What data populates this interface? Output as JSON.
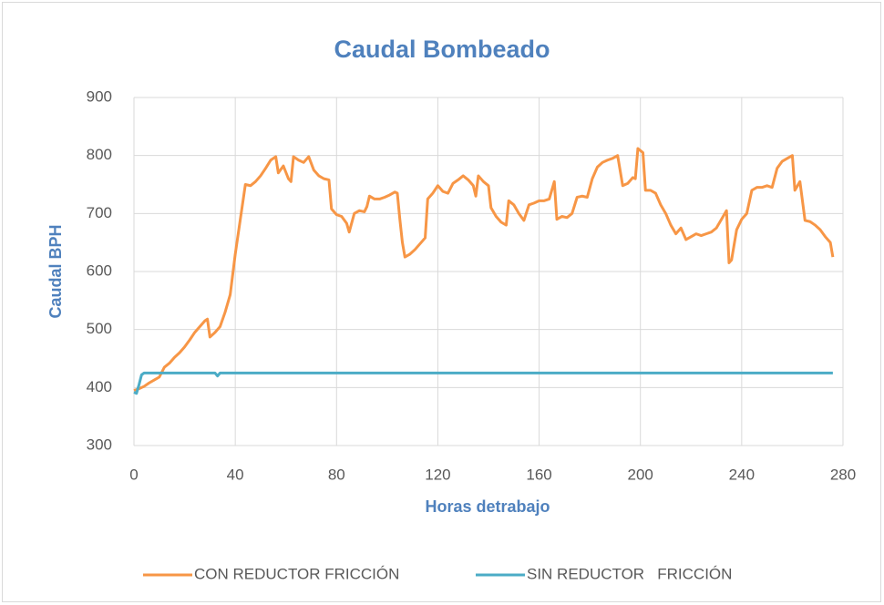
{
  "chart_data": {
    "type": "line",
    "title": "Caudal Bombeado",
    "x_label": "Horas detrabajo",
    "y_label": "Caudal BPH",
    "xlim": [
      0,
      280
    ],
    "xticks": [
      0,
      40,
      80,
      120,
      160,
      200,
      240,
      280
    ],
    "ylim": [
      300,
      900
    ],
    "yticks": [
      300,
      400,
      500,
      600,
      700,
      800,
      900
    ],
    "grid": true,
    "legend": "bottom",
    "series": [
      {
        "name": "CON REDUCTOR FRICCIÓN",
        "color": "#f79646",
        "x": [
          0,
          2,
          4,
          6,
          8,
          10,
          12,
          14,
          16,
          18,
          20,
          22,
          24,
          26,
          28,
          29,
          30,
          32,
          34,
          36,
          38,
          40,
          42,
          44,
          46,
          48,
          50,
          52,
          54,
          56,
          57,
          59,
          61,
          62,
          63,
          65,
          67,
          69,
          71,
          73,
          75,
          77,
          78,
          80,
          82,
          84,
          85,
          87,
          89,
          91,
          92,
          93,
          95,
          97,
          99,
          101,
          103,
          104,
          105,
          106,
          107,
          109,
          111,
          113,
          115,
          116,
          118,
          120,
          122,
          124,
          126,
          128,
          130,
          132,
          134,
          135,
          136,
          138,
          140,
          141,
          143,
          145,
          147,
          148,
          150,
          152,
          154,
          156,
          158,
          160,
          162,
          164,
          166,
          167,
          169,
          171,
          173,
          175,
          177,
          179,
          181,
          183,
          185,
          187,
          189,
          191,
          193,
          195,
          197,
          198,
          199,
          201,
          202,
          204,
          206,
          208,
          210,
          212,
          214,
          216,
          218,
          220,
          222,
          224,
          226,
          228,
          230,
          232,
          234,
          235,
          236,
          238,
          240,
          242,
          244,
          246,
          248,
          250,
          252,
          254,
          256,
          258,
          260,
          261,
          263,
          265,
          267,
          269,
          271,
          273,
          275,
          276
        ],
        "values": [
          395,
          398,
          402,
          408,
          413,
          418,
          435,
          442,
          452,
          460,
          470,
          482,
          495,
          505,
          515,
          518,
          487,
          495,
          505,
          530,
          560,
          630,
          690,
          750,
          748,
          755,
          765,
          778,
          792,
          798,
          770,
          782,
          760,
          755,
          798,
          792,
          788,
          798,
          775,
          765,
          760,
          758,
          708,
          698,
          695,
          683,
          668,
          700,
          705,
          703,
          712,
          730,
          725,
          725,
          728,
          732,
          737,
          735,
          690,
          650,
          625,
          630,
          638,
          648,
          658,
          725,
          735,
          748,
          738,
          735,
          752,
          758,
          765,
          758,
          748,
          730,
          765,
          755,
          748,
          710,
          695,
          685,
          680,
          722,
          715,
          700,
          688,
          715,
          718,
          722,
          722,
          725,
          755,
          690,
          695,
          693,
          700,
          728,
          730,
          728,
          760,
          780,
          788,
          792,
          795,
          800,
          748,
          752,
          762,
          760,
          812,
          805,
          740,
          740,
          735,
          715,
          700,
          680,
          665,
          675,
          655,
          660,
          665,
          662,
          665,
          668,
          675,
          690,
          705,
          615,
          620,
          672,
          690,
          700,
          740,
          745,
          745,
          748,
          745,
          778,
          790,
          795,
          800,
          740,
          755,
          688,
          686,
          680,
          672,
          660,
          650,
          625
        ]
      },
      {
        "name": "SIN REDUCTOR   FRICCIÓN",
        "color": "#4bacc6",
        "x": [
          0,
          1,
          2,
          3,
          4,
          31,
          32,
          33,
          34,
          276
        ],
        "values": [
          392,
          390,
          405,
          422,
          425,
          425,
          425,
          420,
          425,
          425
        ]
      }
    ]
  }
}
